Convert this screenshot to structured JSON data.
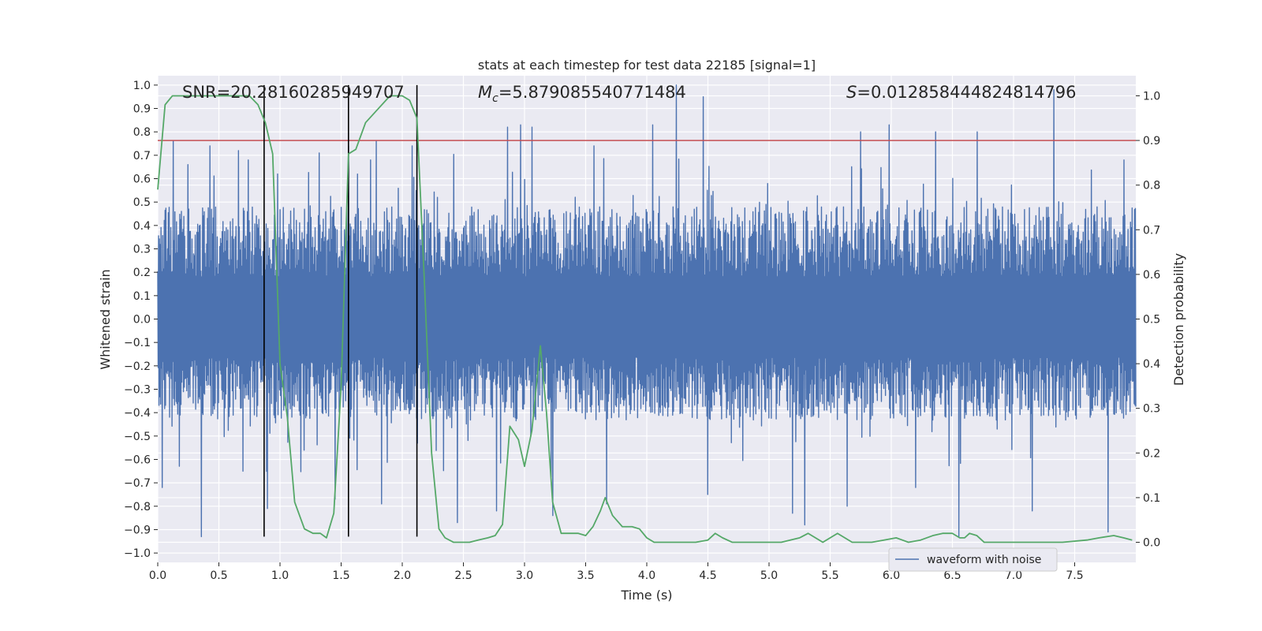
{
  "chart_data": {
    "type": "line",
    "title": "stats at each timestep for test data 22185 [signal=1]",
    "xlabel": "Time (s)",
    "ylabel_left": "Whitened strain",
    "ylabel_right": "Detection probability",
    "xlim": [
      0.0,
      8.0
    ],
    "ylim_left": [
      -1.04,
      1.04
    ],
    "ylim_right": [
      -0.045,
      1.045
    ],
    "x_ticks": [
      0.0,
      0.5,
      1.0,
      1.5,
      2.0,
      2.5,
      3.0,
      3.5,
      4.0,
      4.5,
      5.0,
      5.5,
      6.0,
      6.5,
      7.0,
      7.5
    ],
    "x_tick_labels": [
      "0.0",
      "0.5",
      "1.0",
      "1.5",
      "2.0",
      "2.5",
      "3.0",
      "3.5",
      "4.0",
      "4.5",
      "5.0",
      "5.5",
      "6.0",
      "6.5",
      "7.0",
      "7.5"
    ],
    "y_left_ticks": [
      1.0,
      0.9,
      0.8,
      0.7,
      0.6,
      0.5,
      0.4,
      0.3,
      0.2,
      0.1,
      0.0,
      -0.1,
      -0.2,
      -0.3,
      -0.4,
      -0.5,
      -0.6,
      -0.7,
      -0.8,
      -0.9,
      -1.0
    ],
    "y_left_tick_labels": [
      "1.0",
      "0.9",
      "0.8",
      "0.7",
      "0.6",
      "0.5",
      "0.4",
      "0.3",
      "0.2",
      "0.1",
      "0.0",
      "−0.1",
      "−0.2",
      "−0.3",
      "−0.4",
      "−0.5",
      "−0.6",
      "−0.7",
      "−0.8",
      "−0.9",
      "−1.0"
    ],
    "y_right_ticks": [
      1.0,
      0.9,
      0.8,
      0.7,
      0.6,
      0.5,
      0.4,
      0.3,
      0.2,
      0.1,
      0.0
    ],
    "y_right_tick_labels": [
      "1.0",
      "0.9",
      "0.8",
      "0.7",
      "0.6",
      "0.5",
      "0.4",
      "0.3",
      "0.2",
      "0.1",
      "0.0"
    ],
    "grid": true,
    "annotations": {
      "snr": "SNR=20.28160285949707",
      "mc_symbol": "M",
      "mc_subscript": "c",
      "mc_value": "=5.879085540771484",
      "s_symbol": "S",
      "s_value": "=0.012858444824814796"
    },
    "threshold": {
      "value": 0.9,
      "axis": "right",
      "color": "#c44e52"
    },
    "vertical_lines": [
      0.87,
      1.56,
      2.12
    ],
    "vertical_line_range": [
      -0.93,
      1.0
    ],
    "legend": {
      "entries": [
        "waveform with noise"
      ],
      "location": "lower right"
    },
    "series": [
      {
        "name": "waveform with noise",
        "axis": "left",
        "color": "#4c72b0",
        "kind": "noise",
        "envelope_pos": 0.4,
        "envelope_neg": -0.36,
        "peaks": [
          [
            0.13,
            0.76
          ],
          [
            0.25,
            0.66
          ],
          [
            0.43,
            0.74
          ],
          [
            0.66,
            0.72
          ],
          [
            0.74,
            0.68
          ],
          [
            0.98,
            0.62
          ],
          [
            1.32,
            0.71
          ],
          [
            1.56,
            0.74
          ],
          [
            1.74,
            0.68
          ],
          [
            2.08,
            0.74
          ],
          [
            2.86,
            0.82
          ],
          [
            2.97,
            0.83
          ],
          [
            3.06,
            0.82
          ],
          [
            3.57,
            0.74
          ],
          [
            4.05,
            0.83
          ],
          [
            4.24,
            1.0
          ],
          [
            4.46,
            0.95
          ],
          [
            5.75,
            0.8
          ],
          [
            5.98,
            0.83
          ],
          [
            6.36,
            0.8
          ],
          [
            6.7,
            0.8
          ],
          [
            7.33,
            0.98
          ],
          [
            7.9,
            0.68
          ]
        ],
        "troughs": [
          [
            0.04,
            -0.72
          ],
          [
            0.36,
            -0.93
          ],
          [
            0.9,
            -0.81
          ],
          [
            1.45,
            -0.77
          ],
          [
            1.83,
            -0.79
          ],
          [
            2.45,
            -0.87
          ],
          [
            2.77,
            -0.82
          ],
          [
            3.23,
            -0.84
          ],
          [
            3.67,
            -0.79
          ],
          [
            4.5,
            -0.75
          ],
          [
            5.19,
            -0.83
          ],
          [
            5.29,
            -0.88
          ],
          [
            5.64,
            -0.8
          ],
          [
            6.2,
            -0.72
          ],
          [
            6.55,
            -0.93
          ],
          [
            7.15,
            -0.82
          ],
          [
            7.77,
            -0.91
          ]
        ]
      },
      {
        "name": "",
        "axis": "right",
        "color": "#55a868",
        "kind": "line",
        "x": [
          0.0,
          0.06,
          0.12,
          0.2,
          0.4,
          0.6,
          0.75,
          0.82,
          0.88,
          0.94,
          1.0,
          1.06,
          1.12,
          1.2,
          1.27,
          1.33,
          1.38,
          1.44,
          1.5,
          1.56,
          1.62,
          1.7,
          1.8,
          1.9,
          2.0,
          2.06,
          2.12,
          2.18,
          2.24,
          2.3,
          2.35,
          2.42,
          2.48,
          2.55,
          2.62,
          2.7,
          2.76,
          2.82,
          2.88,
          2.95,
          3.0,
          3.06,
          3.13,
          3.18,
          3.23,
          3.3,
          3.36,
          3.44,
          3.5,
          3.56,
          3.62,
          3.66,
          3.72,
          3.8,
          3.88,
          3.94,
          4.0,
          4.06,
          4.2,
          4.4,
          4.5,
          4.56,
          4.62,
          4.7,
          4.9,
          5.1,
          5.25,
          5.32,
          5.38,
          5.44,
          5.5,
          5.56,
          5.62,
          5.68,
          5.74,
          5.84,
          5.94,
          6.04,
          6.14,
          6.24,
          6.34,
          6.42,
          6.5,
          6.56,
          6.6,
          6.64,
          6.7,
          6.76,
          6.84,
          7.0,
          7.2,
          7.4,
          7.6,
          7.7,
          7.82,
          7.9,
          7.97
        ],
        "y": [
          0.79,
          0.98,
          1.0,
          1.0,
          1.0,
          1.0,
          1.0,
          0.98,
          0.94,
          0.87,
          0.4,
          0.28,
          0.09,
          0.03,
          0.02,
          0.02,
          0.01,
          0.065,
          0.35,
          0.87,
          0.88,
          0.94,
          0.97,
          1.0,
          1.0,
          0.99,
          0.95,
          0.59,
          0.2,
          0.03,
          0.01,
          0.0,
          0.0,
          0.0,
          0.005,
          0.01,
          0.015,
          0.04,
          0.26,
          0.23,
          0.17,
          0.25,
          0.44,
          0.29,
          0.09,
          0.02,
          0.02,
          0.02,
          0.015,
          0.035,
          0.07,
          0.1,
          0.06,
          0.035,
          0.035,
          0.03,
          0.01,
          0.0,
          0.0,
          0.0,
          0.005,
          0.02,
          0.01,
          0.0,
          0.0,
          0.0,
          0.01,
          0.02,
          0.01,
          0.0,
          0.01,
          0.02,
          0.01,
          0.0,
          0.0,
          0.0,
          0.005,
          0.01,
          0.0,
          0.005,
          0.015,
          0.02,
          0.02,
          0.01,
          0.01,
          0.02,
          0.015,
          0.0,
          0.0,
          0.0,
          0.0,
          0.0,
          0.005,
          0.01,
          0.015,
          0.01,
          0.005
        ]
      }
    ]
  }
}
